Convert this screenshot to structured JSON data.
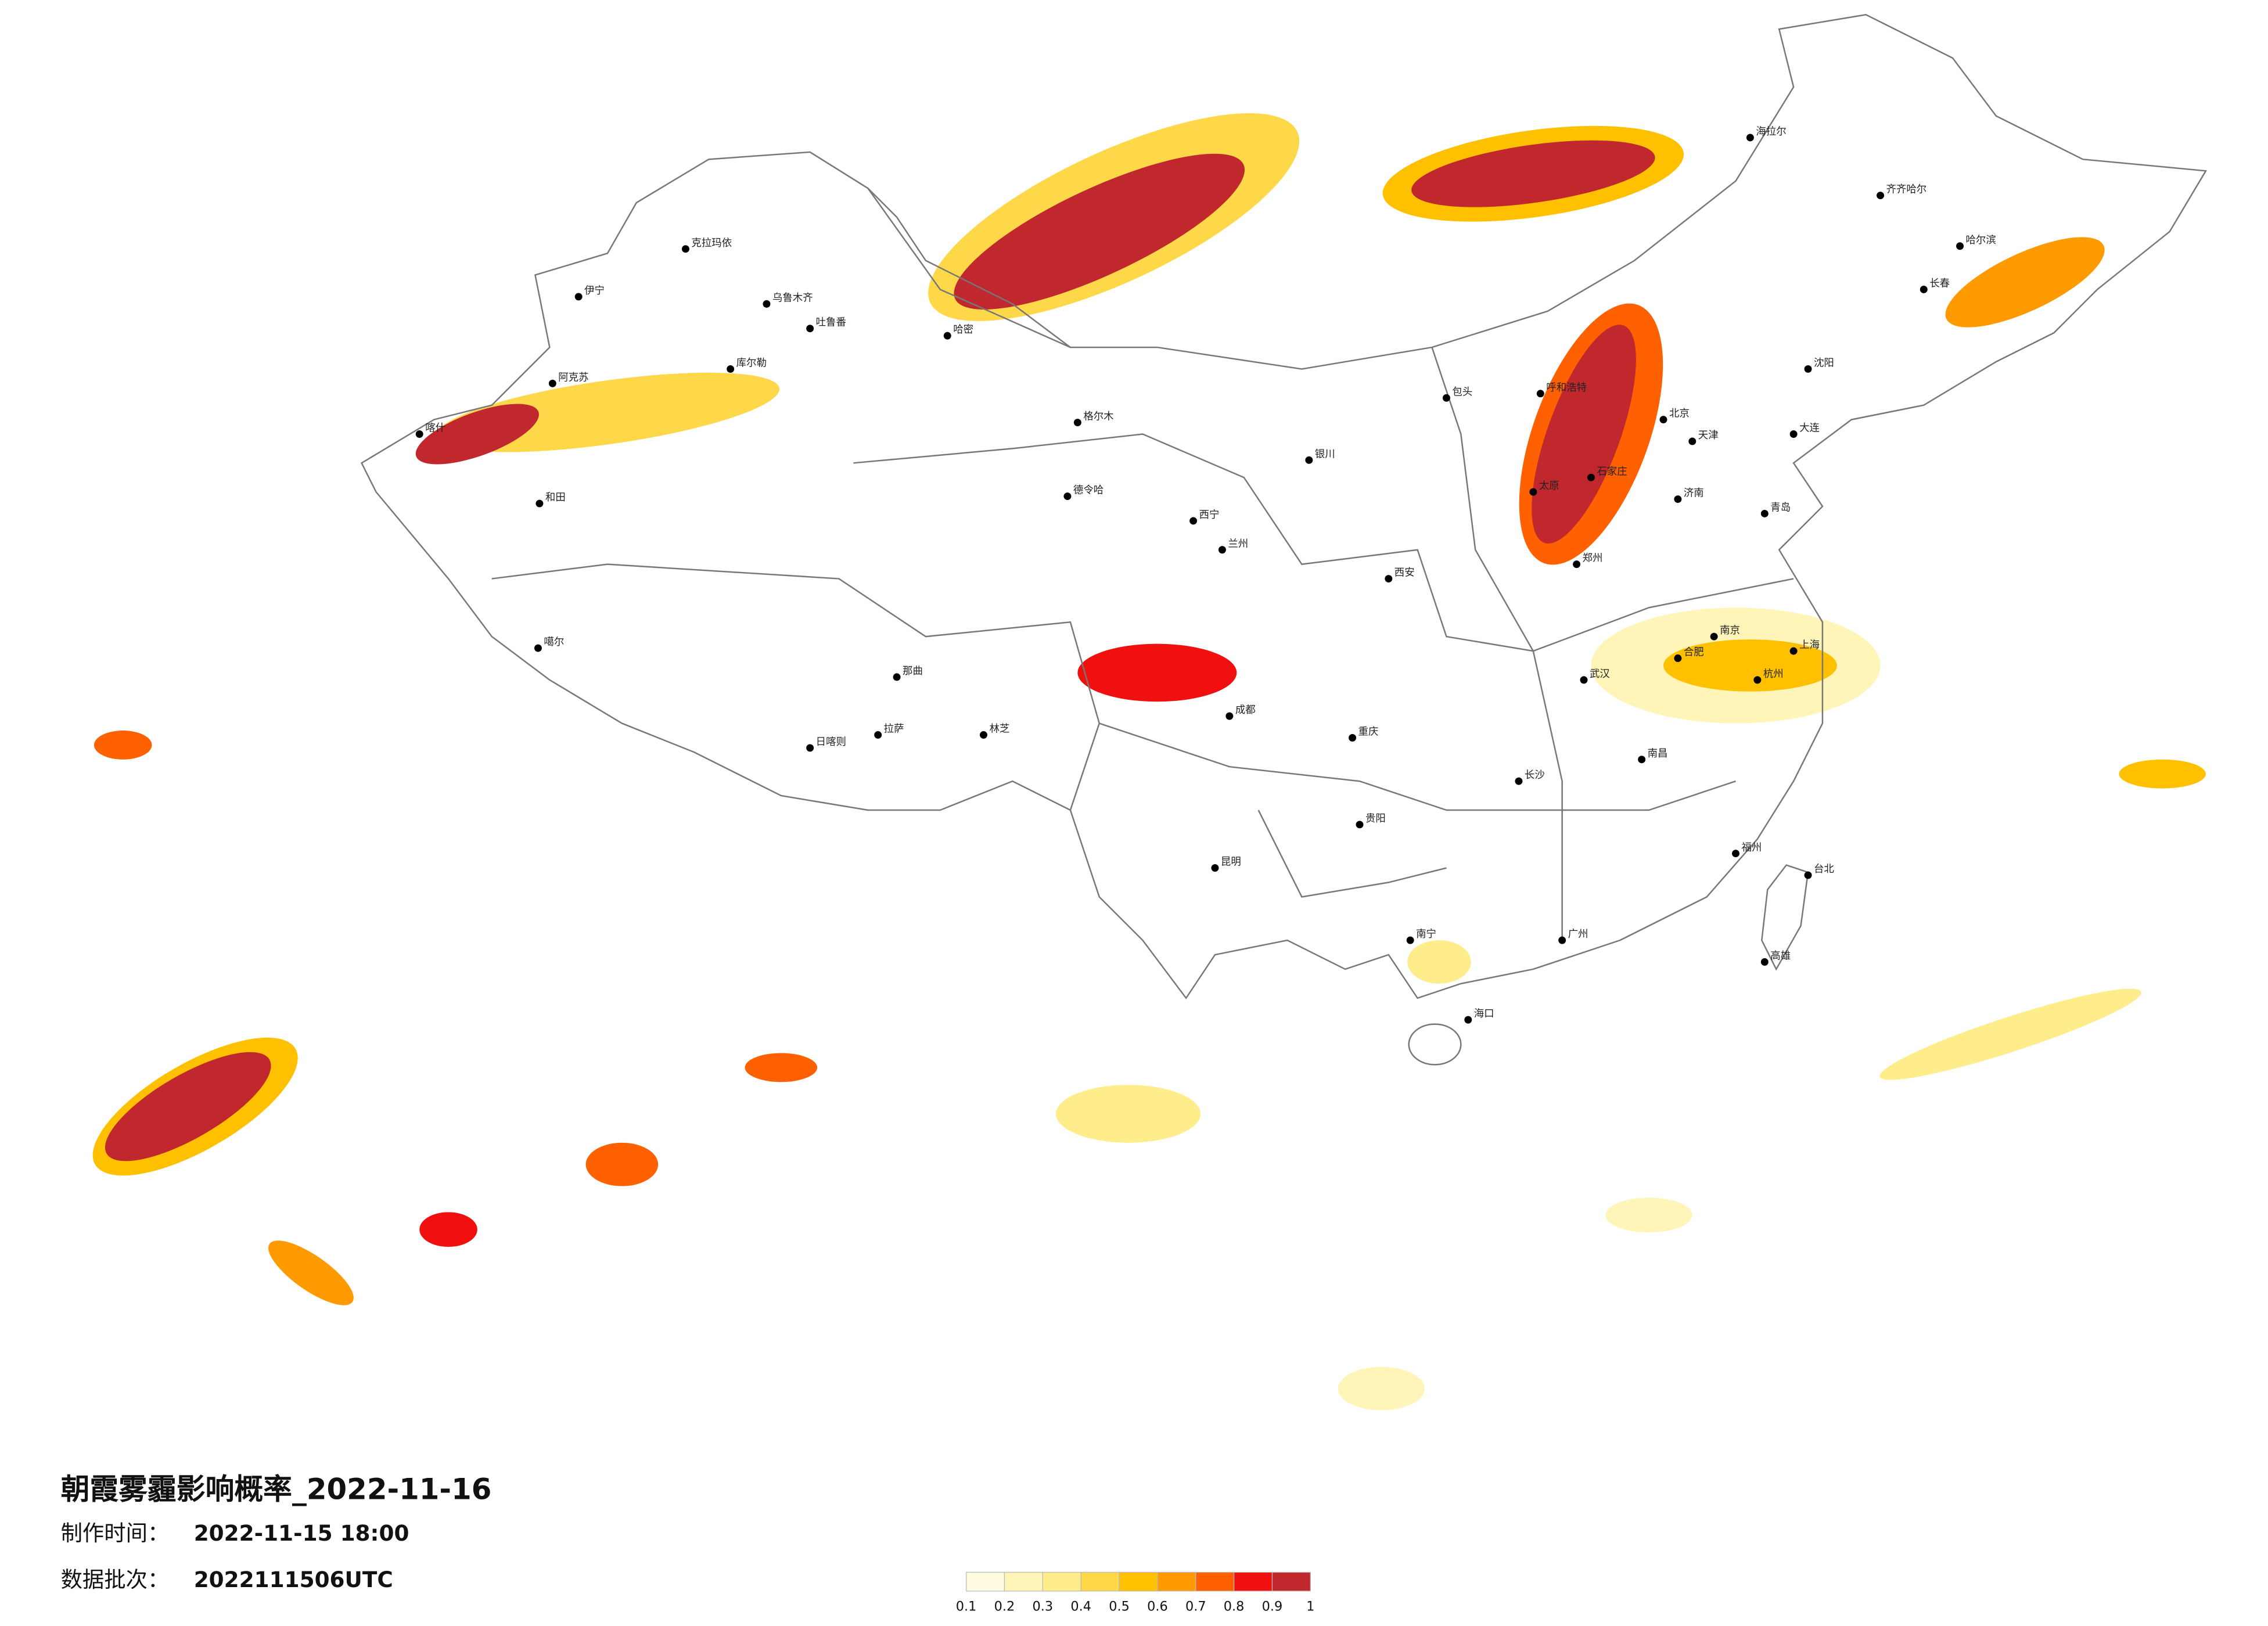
{
  "title": "朝霞雾霾影响概率_2022-11-16",
  "made_label": "制作时间：",
  "made_time": "2022-11-15 18:00",
  "batch_label": "数据批次：",
  "batch": "2022111506UTC",
  "legend": {
    "colors": [
      "#fffbe0",
      "#fff5b8",
      "#ffec8a",
      "#ffd84a",
      "#ffc000",
      "#ff9a00",
      "#ff6000",
      "#f01010",
      "#c0282e"
    ],
    "ticks": [
      0.1,
      0.2,
      0.3,
      0.4,
      0.5,
      0.6,
      0.7,
      0.8,
      0.9,
      1
    ]
  },
  "cities": [
    "克拉玛依",
    "乌鲁木齐",
    "吐鲁番",
    "伊宁",
    "喀什",
    "和田",
    "阿克苏",
    "库尔勒",
    "哈密",
    "噶尔",
    "日喀则",
    "拉萨",
    "林芝",
    "那曲",
    "格尔木",
    "德令哈",
    "西宁",
    "兰州",
    "银川",
    "呼和浩特",
    "包头",
    "北京",
    "天津",
    "石家庄",
    "太原",
    "济南",
    "郑州",
    "西安",
    "成都",
    "重庆",
    "贵阳",
    "昆明",
    "南宁",
    "广州",
    "海口",
    "长沙",
    "武汉",
    "南昌",
    "福州",
    "杭州",
    "上海",
    "南京",
    "合肥",
    "沈阳",
    "长春",
    "哈尔滨",
    "齐齐哈尔",
    "海拉尔",
    "台北",
    "高雄",
    "大连",
    "青岛"
  ]
}
